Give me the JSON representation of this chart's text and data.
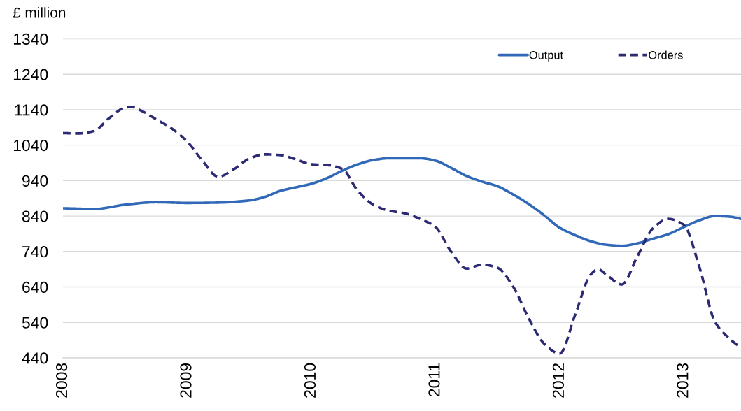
{
  "chart_data": {
    "type": "line",
    "ylabel": "£ million",
    "xlim": [
      2008,
      2013.46
    ],
    "xticks": [
      2008,
      2009,
      2010,
      2011,
      2012,
      2013
    ],
    "ylim": [
      440,
      1340
    ],
    "yticks": [
      440,
      540,
      640,
      740,
      840,
      940,
      1040,
      1140,
      1240,
      1340
    ],
    "grid": "y",
    "legend": "top right",
    "series": [
      {
        "name": "Output",
        "color": "#3169b8",
        "line_style": "solid",
        "x": [
          2008,
          2008.25,
          2008.5,
          2008.75,
          2009,
          2009.25,
          2009.5,
          2009.625,
          2009.75,
          2009.875,
          2010,
          2010.125,
          2010.25,
          2010.375,
          2010.5,
          2010.625,
          2010.75,
          2010.875,
          2011,
          2011.125,
          2011.25,
          2011.375,
          2011.5,
          2011.625,
          2011.75,
          2011.875,
          2012,
          2012.125,
          2012.25,
          2012.375,
          2012.5,
          2012.625,
          2012.75,
          2012.875,
          2013,
          2013.125,
          2013.25,
          2013.375,
          2013.46
        ],
        "values": [
          862,
          860,
          872,
          879,
          877,
          878,
          884,
          894,
          911,
          921,
          931,
          947,
          968,
          986,
          998,
          1003,
          1003,
          1003,
          996,
          976,
          953,
          937,
          924,
          901,
          874,
          842,
          807,
          786,
          769,
          759,
          756,
          763,
          776,
          789,
          809,
          828,
          840,
          838,
          832
        ]
      },
      {
        "name": "Orders",
        "color": "#2b2a73",
        "line_style": "dashed",
        "x": [
          2008,
          2008.125,
          2008.25,
          2008.375,
          2008.5,
          2008.55,
          2008.625,
          2008.75,
          2008.875,
          2009,
          2009.125,
          2009.25,
          2009.375,
          2009.5,
          2009.625,
          2009.75,
          2009.875,
          2010,
          2010.125,
          2010.25,
          2010.375,
          2010.5,
          2010.625,
          2010.75,
          2010.875,
          2011,
          2011.125,
          2011.25,
          2011.375,
          2011.5,
          2011.625,
          2011.75,
          2011.875,
          2012,
          2012.125,
          2012.25,
          2012.31,
          2012.375,
          2012.5,
          2012.625,
          2012.75,
          2012.875,
          2013,
          2013.125,
          2013.25,
          2013.375,
          2013.46
        ],
        "values": [
          1074,
          1073,
          1080,
          1117,
          1146,
          1148,
          1138,
          1113,
          1087,
          1050,
          995,
          951,
          972,
          1002,
          1014,
          1012,
          1000,
          986,
          984,
          973,
          911,
          872,
          855,
          848,
          832,
          809,
          740,
          692,
          703,
          694,
          641,
          552,
          480,
          452,
          562,
          675,
          690,
          675,
          647,
          726,
          805,
          832,
          815,
          696,
          542,
          492,
          468
        ]
      }
    ]
  }
}
